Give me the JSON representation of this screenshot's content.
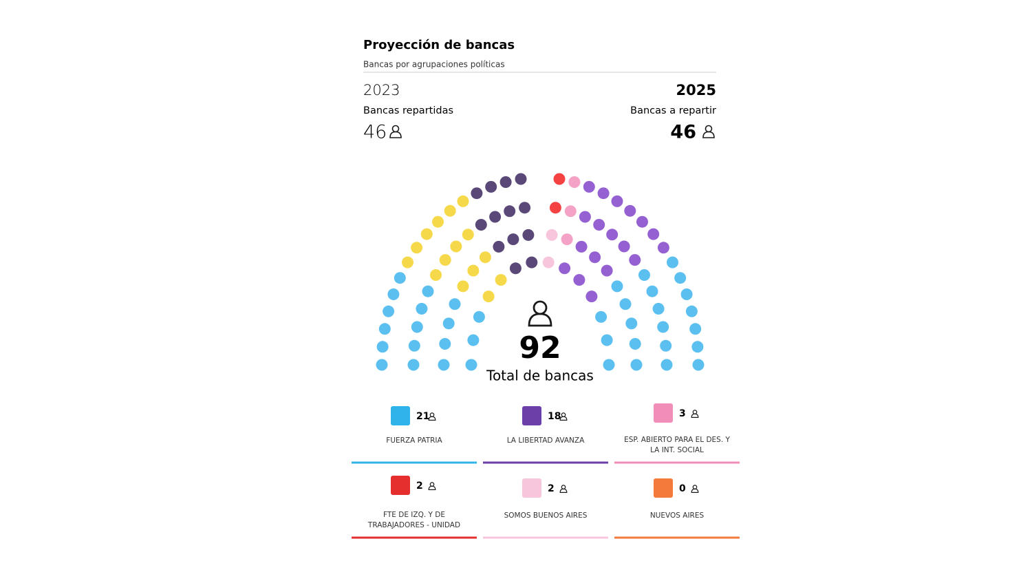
{
  "chart_data": {
    "type": "parliament",
    "title": "Proyección de bancas",
    "subtitle": "Bancas por agrupaciones políticas",
    "left": {
      "year": "2023",
      "label": "Bancas repartidas",
      "value": 46
    },
    "right": {
      "year": "2025",
      "label": "Bancas a repartir",
      "value": 46
    },
    "total": 92,
    "total_label": "Total de bancas",
    "seats_2023": [
      {
        "color": "#5bc0f0",
        "value": 18
      },
      {
        "color": "#f6d94a",
        "value": 15
      },
      {
        "color": "#5a4878",
        "value": 13
      }
    ],
    "parties": [
      {
        "name": "FUERZA PATRIA",
        "color": "#5bc0f0",
        "bar_color": "#2fb3e8",
        "value": 21
      },
      {
        "name": "LA LIBERTAD AVANZA",
        "color": "#9460d2",
        "bar_color": "#6b3fa8",
        "value": 18
      },
      {
        "name": "ESP. ABIERTO PARA EL DES. Y LA INT. SOCIAL",
        "color": "#f4a3c6",
        "bar_color": "#f28db7",
        "value": 3
      },
      {
        "name": "FTE DE IZQ. Y DE TRABAJADORES - UNIDAD",
        "color": "#f44242",
        "bar_color": "#e52e2e",
        "value": 2
      },
      {
        "name": "SOMOS BUENOS AIRES",
        "color": "#f8c6dc",
        "bar_color": "#f8c6dc",
        "value": 2
      },
      {
        "name": "NUEVOS AIRES",
        "color": "#f47a3c",
        "bar_color": "#f47a3c",
        "value": 0
      }
    ]
  }
}
